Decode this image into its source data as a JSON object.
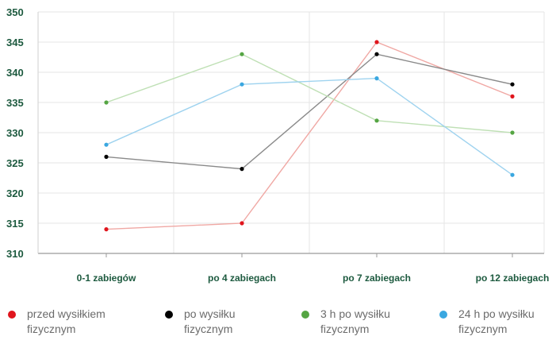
{
  "chart_data": {
    "type": "line",
    "categories": [
      "0-1 zabiegów",
      "po 4 zabiegach",
      "po 7 zabiegach",
      "po 12 zabiegach"
    ],
    "ylim": [
      310,
      350
    ],
    "yticks": [
      310,
      315,
      320,
      325,
      330,
      335,
      340,
      345,
      350
    ],
    "grid": true,
    "legend_position": "bottom",
    "series": [
      {
        "name": "przed wysiłkiem fizycznym",
        "values": [
          314,
          315,
          345,
          336
        ],
        "color": "#e0151d",
        "line_color": "#f0a8a4",
        "label_lines": [
          "przed wysiłkiem",
          "fizycznym"
        ]
      },
      {
        "name": "po wysiłku fizycznym",
        "values": [
          326,
          324,
          343,
          338
        ],
        "color": "#000000",
        "line_color": "#8a8a8a",
        "label_lines": [
          "po wysiłku",
          "fizycznym"
        ]
      },
      {
        "name": "3 h po wysiłku fizycznym",
        "values": [
          335,
          343,
          332,
          330
        ],
        "color": "#55a543",
        "line_color": "#bfe0b5",
        "label_lines": [
          "3 h po wysiłku",
          "fizycznym"
        ]
      },
      {
        "name": "24 h po wysiłku fizycznym",
        "values": [
          328,
          338,
          339,
          323
        ],
        "color": "#3aa7e0",
        "line_color": "#9fd3ef",
        "label_lines": [
          "24 h po wysiłku",
          "fizycznym"
        ]
      }
    ]
  }
}
